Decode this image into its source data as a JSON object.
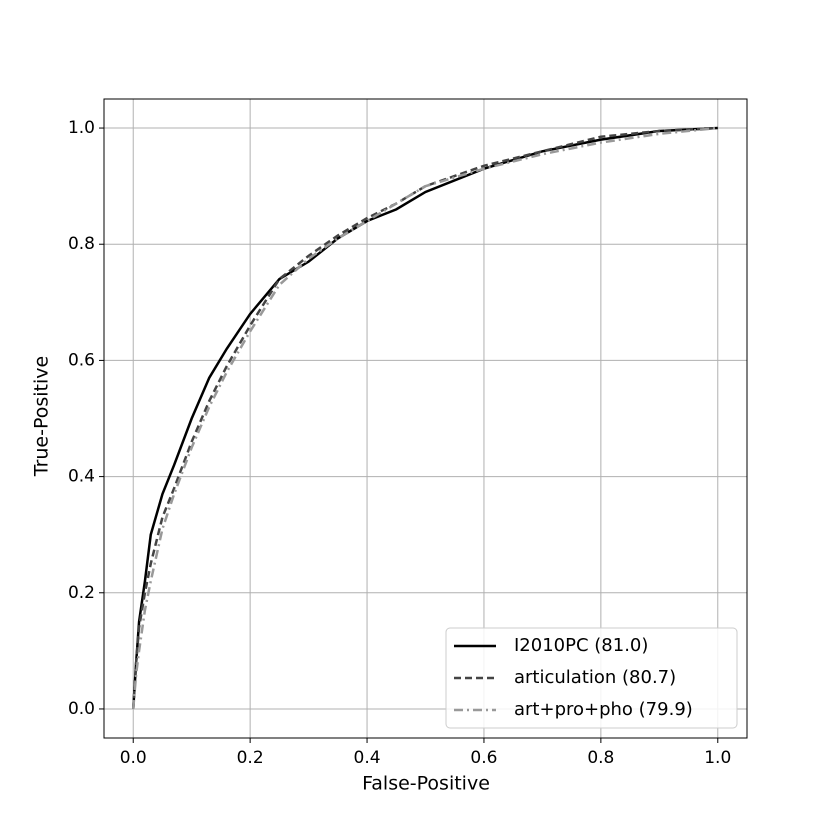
{
  "chart_data": {
    "type": "line",
    "xlabel": "False-Positive",
    "ylabel": "True-Positive",
    "x": [
      0,
      0.005,
      0.01,
      0.02,
      0.03,
      0.05,
      0.07,
      0.1,
      0.13,
      0.16,
      0.2,
      0.25,
      0.3,
      0.35,
      0.4,
      0.45,
      0.5,
      0.6,
      0.7,
      0.8,
      0.9,
      1
    ],
    "series": [
      {
        "name": "I2010PC (81.0)",
        "color": "#000000",
        "style": "solid",
        "values": [
          0,
          0.08,
          0.15,
          0.22,
          0.3,
          0.37,
          0.42,
          0.5,
          0.57,
          0.62,
          0.68,
          0.74,
          0.77,
          0.81,
          0.84,
          0.86,
          0.89,
          0.93,
          0.96,
          0.98,
          0.995,
          1
        ]
      },
      {
        "name": "articulation (80.7)",
        "color": "#444444",
        "style": "dashed",
        "values": [
          0,
          0.08,
          0.14,
          0.2,
          0.25,
          0.33,
          0.38,
          0.46,
          0.53,
          0.59,
          0.66,
          0.74,
          0.78,
          0.815,
          0.845,
          0.87,
          0.9,
          0.935,
          0.96,
          0.985,
          0.995,
          1
        ]
      },
      {
        "name": "art+pro+pho (79.9)",
        "color": "#999999",
        "style": "dashdot",
        "values": [
          0,
          0.06,
          0.1,
          0.17,
          0.22,
          0.31,
          0.37,
          0.45,
          0.52,
          0.58,
          0.65,
          0.73,
          0.775,
          0.81,
          0.84,
          0.87,
          0.9,
          0.93,
          0.955,
          0.975,
          0.99,
          1
        ]
      }
    ],
    "xlim": [
      -0.05,
      1.05
    ],
    "ylim": [
      -0.05,
      1.05
    ],
    "xticks": [
      {
        "value": 0,
        "label": "0.0"
      },
      0.2,
      0.4,
      0.6,
      0.8,
      {
        "value": 1,
        "label": "1.0"
      }
    ],
    "yticks": [
      {
        "value": 0,
        "label": "0.0"
      },
      0.2,
      0.4,
      0.6,
      0.8,
      {
        "value": 1,
        "label": "1.0"
      }
    ],
    "grid": true,
    "legend": "lower right"
  }
}
